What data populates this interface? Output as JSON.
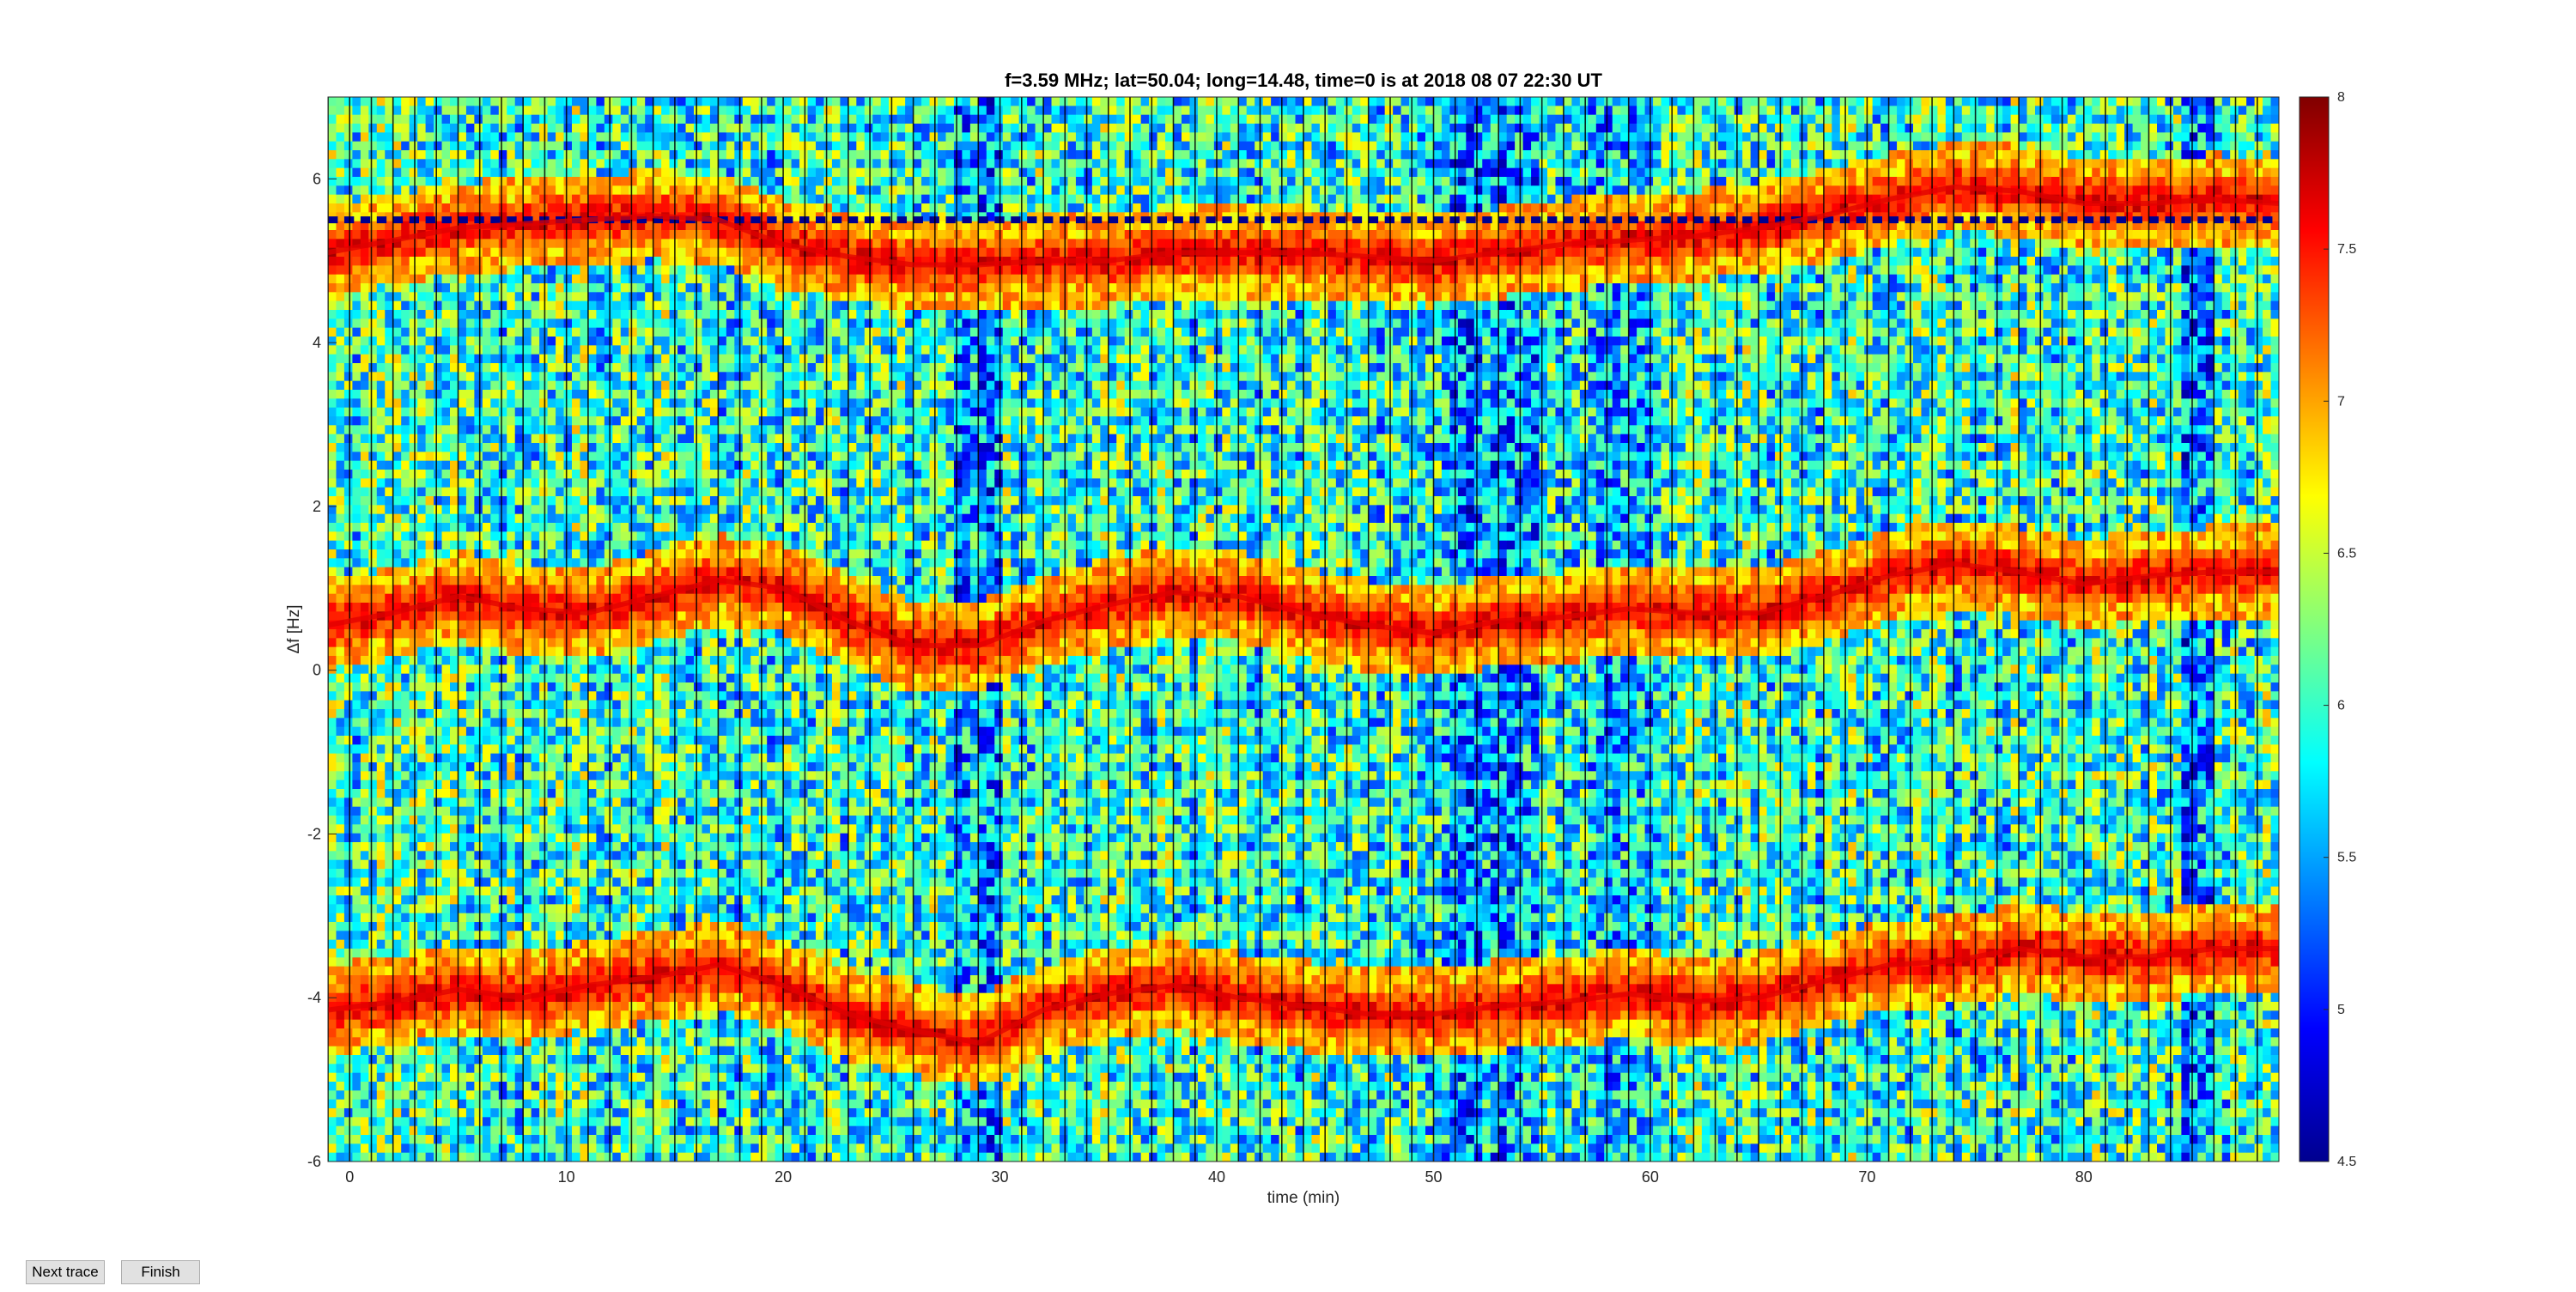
{
  "chart_data": {
    "type": "heatmap",
    "title": "f=3.59 MHz;  lat=50.04; long=14.48, time=0 is at 2018 08 07 22:30 UT",
    "xlabel": "time (min)",
    "ylabel": "Δf [Hz]",
    "xlim": [
      -1,
      89
    ],
    "ylim": [
      -6,
      7
    ],
    "xticks": [
      0,
      10,
      20,
      30,
      40,
      50,
      60,
      70,
      80
    ],
    "yticks": [
      -6,
      -4,
      -2,
      0,
      2,
      4,
      6
    ],
    "colormap": "jet",
    "colorbar": {
      "range": [
        4.5,
        8
      ],
      "ticks": [
        4.5,
        5,
        5.5,
        6,
        6.5,
        7,
        7.5,
        8
      ]
    },
    "grid": false,
    "traces": [
      {
        "x": [
          -1,
          2,
          5,
          8,
          11,
          14,
          17,
          20,
          23,
          26,
          29,
          32,
          35,
          38,
          41,
          44,
          47,
          50,
          53,
          56,
          59,
          62,
          65,
          68,
          71,
          74,
          77,
          80,
          83,
          86,
          89
        ],
        "y": [
          5.1,
          5.25,
          5.4,
          5.45,
          5.5,
          5.55,
          5.5,
          5.2,
          5.05,
          4.95,
          4.95,
          5.0,
          5.0,
          5.1,
          5.1,
          5.1,
          5.05,
          5.0,
          5.1,
          5.2,
          5.25,
          5.3,
          5.4,
          5.55,
          5.75,
          5.9,
          5.85,
          5.7,
          5.7,
          5.75,
          5.7
        ]
      },
      {
        "x": [
          -1,
          2,
          5,
          8,
          11,
          14,
          17,
          20,
          23,
          26,
          29,
          32,
          35,
          38,
          41,
          44,
          47,
          50,
          53,
          56,
          59,
          62,
          65,
          68,
          71,
          74,
          77,
          80,
          83,
          86,
          89
        ],
        "y": [
          0.55,
          0.7,
          0.9,
          0.75,
          0.7,
          0.9,
          1.1,
          1.0,
          0.6,
          0.3,
          0.3,
          0.6,
          0.8,
          0.95,
          0.9,
          0.7,
          0.55,
          0.45,
          0.6,
          0.65,
          0.75,
          0.7,
          0.7,
          0.9,
          1.15,
          1.3,
          1.2,
          1.05,
          1.15,
          1.2,
          1.2
        ]
      },
      {
        "x": [
          -1,
          2,
          5,
          8,
          11,
          14,
          17,
          20,
          23,
          26,
          29,
          32,
          35,
          38,
          41,
          44,
          47,
          50,
          53,
          56,
          59,
          62,
          65,
          68,
          71,
          74,
          77,
          80,
          83,
          86,
          89
        ],
        "y": [
          -4.15,
          -4.05,
          -3.9,
          -4.0,
          -3.85,
          -3.75,
          -3.6,
          -3.85,
          -4.2,
          -4.4,
          -4.55,
          -4.15,
          -3.95,
          -3.85,
          -4.0,
          -4.1,
          -4.2,
          -4.2,
          -4.1,
          -4.05,
          -3.95,
          -4.05,
          -4.0,
          -3.8,
          -3.6,
          -3.55,
          -3.4,
          -3.5,
          -3.5,
          -3.4,
          -3.4
        ]
      }
    ]
  },
  "buttons": {
    "next": "Next trace",
    "finish": "Finish"
  }
}
